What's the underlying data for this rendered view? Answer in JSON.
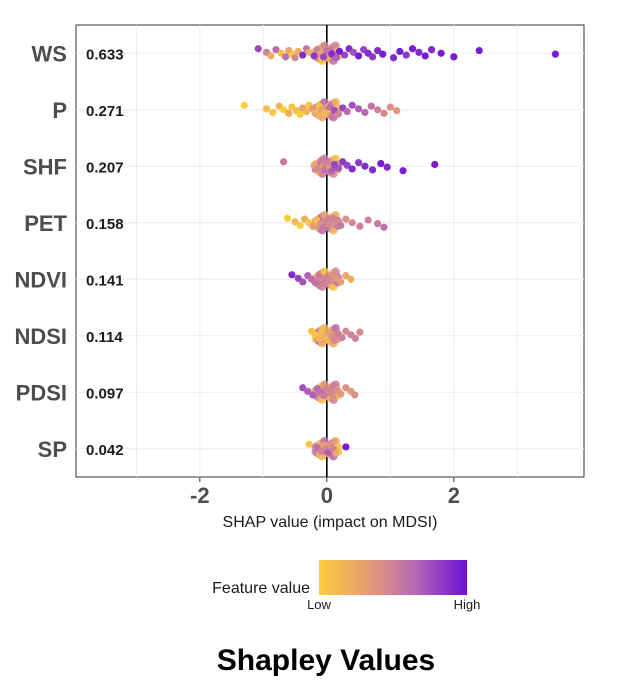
{
  "chart_data": {
    "type": "scatter",
    "title": "",
    "xlabel": "SHAP value (impact on MDSI)",
    "ylabel": "",
    "xlim": [
      -3.95,
      4.05
    ],
    "xticks": [
      -2,
      0,
      2
    ],
    "xtick_labels": [
      "-2",
      "0",
      "2"
    ],
    "grid": true,
    "legend": {
      "title": "Feature value",
      "low_label": "Low",
      "high_label": "High",
      "placement": "bottom",
      "colors": [
        "#fccd3a",
        "#e59a7a",
        "#b668b4",
        "#6b10d6"
      ]
    },
    "features": [
      {
        "name": "WS",
        "importance": "0.633",
        "range": [
          -1.1,
          3.6
        ],
        "dots": [
          [
            -1.08,
            0.8
          ],
          [
            -0.95,
            0.5
          ],
          [
            -0.88,
            0.2
          ],
          [
            -0.8,
            0.65
          ],
          [
            -0.72,
            0.1
          ],
          [
            -0.65,
            0.6
          ],
          [
            -0.6,
            0.3
          ],
          [
            -0.55,
            0.1
          ],
          [
            -0.5,
            0.45
          ],
          [
            -0.45,
            0.2
          ],
          [
            -0.38,
            0.9
          ],
          [
            -0.32,
            0.6
          ],
          [
            -0.28,
            0.2
          ],
          [
            -0.2,
            0.85
          ],
          [
            -0.15,
            0.5
          ],
          [
            -0.1,
            0.3
          ],
          [
            -0.05,
            0.8
          ],
          [
            0.02,
            0.6
          ],
          [
            0.08,
            0.9
          ],
          [
            0.15,
            0.7
          ],
          [
            0.2,
            0.95
          ],
          [
            0.28,
            0.8
          ],
          [
            0.35,
            0.9
          ],
          [
            0.42,
            0.75
          ],
          [
            0.5,
            0.95
          ],
          [
            0.58,
            0.8
          ],
          [
            0.65,
            0.9
          ],
          [
            0.72,
            0.85
          ],
          [
            0.8,
            0.9
          ],
          [
            0.88,
            0.95
          ],
          [
            1.05,
            0.9
          ],
          [
            1.15,
            0.95
          ],
          [
            1.25,
            0.85
          ],
          [
            1.35,
            0.95
          ],
          [
            1.45,
            0.9
          ],
          [
            1.55,
            0.95
          ],
          [
            1.65,
            0.9
          ],
          [
            1.8,
            0.95
          ],
          [
            2.0,
            0.95
          ],
          [
            2.4,
            0.95
          ],
          [
            3.6,
            0.95
          ]
        ]
      },
      {
        "name": "P",
        "importance": "0.271",
        "range": [
          -1.3,
          1.15
        ],
        "dots": [
          [
            -1.3,
            0.0
          ],
          [
            -0.95,
            0.1
          ],
          [
            -0.85,
            0.05
          ],
          [
            -0.75,
            0.15
          ],
          [
            -0.68,
            0.0
          ],
          [
            -0.6,
            0.2
          ],
          [
            -0.55,
            0.05
          ],
          [
            -0.48,
            0.1
          ],
          [
            -0.42,
            0.0
          ],
          [
            -0.38,
            0.3
          ],
          [
            -0.32,
            0.15
          ],
          [
            -0.28,
            0.05
          ],
          [
            -0.22,
            0.35
          ],
          [
            -0.18,
            0.2
          ],
          [
            -0.12,
            0.1
          ],
          [
            -0.08,
            0.3
          ],
          [
            -0.04,
            0.15
          ],
          [
            0.05,
            0.6
          ],
          [
            0.12,
            0.75
          ],
          [
            0.18,
            0.5
          ],
          [
            0.25,
            0.8
          ],
          [
            0.32,
            0.65
          ],
          [
            0.4,
            0.75
          ],
          [
            0.5,
            0.7
          ],
          [
            0.6,
            0.65
          ],
          [
            0.7,
            0.6
          ],
          [
            0.8,
            0.5
          ],
          [
            0.9,
            0.45
          ],
          [
            1.0,
            0.4
          ],
          [
            1.1,
            0.35
          ]
        ]
      },
      {
        "name": "SHF",
        "importance": "0.207",
        "range": [
          -0.7,
          1.7
        ],
        "dots": [
          [
            -0.68,
            0.55
          ],
          [
            -0.2,
            0.3
          ],
          [
            -0.15,
            0.45
          ],
          [
            -0.1,
            0.55
          ],
          [
            -0.06,
            0.35
          ],
          [
            -0.03,
            0.6
          ],
          [
            0.0,
            0.5
          ],
          [
            0.04,
            0.4
          ],
          [
            0.08,
            0.7
          ],
          [
            0.12,
            0.8
          ],
          [
            0.18,
            0.75
          ],
          [
            0.25,
            0.85
          ],
          [
            0.32,
            0.8
          ],
          [
            0.4,
            0.9
          ],
          [
            0.5,
            0.85
          ],
          [
            0.6,
            0.9
          ],
          [
            0.72,
            0.9
          ],
          [
            0.85,
            0.95
          ],
          [
            0.95,
            0.9
          ],
          [
            1.2,
            0.95
          ],
          [
            1.7,
            0.95
          ]
        ]
      },
      {
        "name": "PET",
        "importance": "0.158",
        "range": [
          -0.65,
          0.9
        ],
        "dots": [
          [
            -0.62,
            0.0
          ],
          [
            -0.5,
            0.15
          ],
          [
            -0.42,
            0.0
          ],
          [
            -0.35,
            0.2
          ],
          [
            -0.28,
            0.05
          ],
          [
            -0.22,
            0.3
          ],
          [
            -0.16,
            0.1
          ],
          [
            -0.1,
            0.4
          ],
          [
            -0.05,
            0.55
          ],
          [
            0.0,
            0.5
          ],
          [
            0.05,
            0.45
          ],
          [
            0.1,
            0.5
          ],
          [
            0.16,
            0.45
          ],
          [
            0.22,
            0.55
          ],
          [
            0.3,
            0.4
          ],
          [
            0.4,
            0.45
          ],
          [
            0.52,
            0.5
          ],
          [
            0.65,
            0.5
          ],
          [
            0.8,
            0.55
          ],
          [
            0.9,
            0.6
          ]
        ]
      },
      {
        "name": "NDVI",
        "importance": "0.141",
        "range": [
          -0.55,
          0.4
        ],
        "dots": [
          [
            -0.55,
            0.9
          ],
          [
            -0.45,
            0.8
          ],
          [
            -0.38,
            0.75
          ],
          [
            -0.3,
            0.7
          ],
          [
            -0.24,
            0.65
          ],
          [
            -0.18,
            0.6
          ],
          [
            -0.12,
            0.55
          ],
          [
            -0.08,
            0.5
          ],
          [
            -0.04,
            0.5
          ],
          [
            0.0,
            0.5
          ],
          [
            0.05,
            0.45
          ],
          [
            0.1,
            0.4
          ],
          [
            0.15,
            0.35
          ],
          [
            0.22,
            0.3
          ],
          [
            0.3,
            0.25
          ],
          [
            0.38,
            0.2
          ]
        ]
      },
      {
        "name": "NDSI",
        "importance": "0.114",
        "range": [
          -0.25,
          0.55
        ],
        "dots": [
          [
            -0.24,
            0.1
          ],
          [
            -0.18,
            0.05
          ],
          [
            -0.12,
            0.15
          ],
          [
            -0.08,
            0.1
          ],
          [
            -0.04,
            0.2
          ],
          [
            0.0,
            0.15
          ],
          [
            0.04,
            0.3
          ],
          [
            0.08,
            0.4
          ],
          [
            0.12,
            0.45
          ],
          [
            0.18,
            0.5
          ],
          [
            0.24,
            0.5
          ],
          [
            0.3,
            0.45
          ],
          [
            0.38,
            0.5
          ],
          [
            0.45,
            0.5
          ],
          [
            0.52,
            0.45
          ]
        ]
      },
      {
        "name": "PDSI",
        "importance": "0.097",
        "range": [
          -0.4,
          0.45
        ],
        "dots": [
          [
            -0.38,
            0.75
          ],
          [
            -0.3,
            0.7
          ],
          [
            -0.22,
            0.7
          ],
          [
            -0.15,
            0.65
          ],
          [
            -0.1,
            0.6
          ],
          [
            -0.05,
            0.55
          ],
          [
            0.0,
            0.5
          ],
          [
            0.05,
            0.45
          ],
          [
            0.1,
            0.4
          ],
          [
            0.16,
            0.4
          ],
          [
            0.22,
            0.35
          ],
          [
            0.3,
            0.4
          ],
          [
            0.38,
            0.35
          ],
          [
            0.44,
            0.4
          ]
        ]
      },
      {
        "name": "SP",
        "importance": "0.042",
        "range": [
          -0.3,
          0.3
        ],
        "dots": [
          [
            -0.28,
            0.05
          ],
          [
            -0.15,
            0.6
          ],
          [
            -0.08,
            0.5
          ],
          [
            -0.04,
            0.3
          ],
          [
            0.0,
            0.5
          ],
          [
            0.02,
            0.7
          ],
          [
            0.05,
            0.4
          ],
          [
            0.1,
            0.5
          ],
          [
            0.15,
            0.2
          ],
          [
            0.3,
            0.95
          ]
        ]
      }
    ]
  },
  "caption": "Shapley Values"
}
